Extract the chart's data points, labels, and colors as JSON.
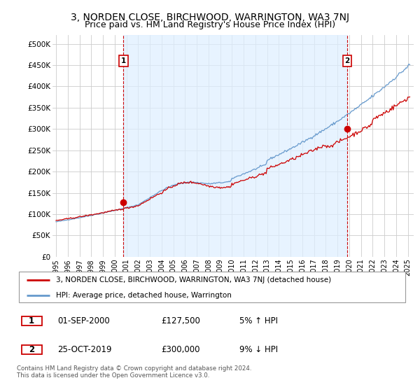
{
  "title": "3, NORDEN CLOSE, BIRCHWOOD, WARRINGTON, WA3 7NJ",
  "subtitle": "Price paid vs. HM Land Registry's House Price Index (HPI)",
  "property_color": "#cc0000",
  "hpi_color": "#6699cc",
  "vline_color": "#cc0000",
  "shade_color": "#ddeeff",
  "grid_color": "#cccccc",
  "bg_color": "#ffffff",
  "sale1_year_float": 2000.75,
  "sale1_value": 127500,
  "sale2_year_float": 2019.83,
  "sale2_value": 300000,
  "ylim": [
    0,
    520000
  ],
  "yticks": [
    0,
    50000,
    100000,
    150000,
    200000,
    250000,
    300000,
    350000,
    400000,
    450000,
    500000
  ],
  "ytick_labels": [
    "£0",
    "£50K",
    "£100K",
    "£150K",
    "£200K",
    "£250K",
    "£300K",
    "£350K",
    "£400K",
    "£450K",
    "£500K"
  ],
  "xlabel_years": [
    "1995",
    "1996",
    "1997",
    "1998",
    "1999",
    "2000",
    "2001",
    "2002",
    "2003",
    "2004",
    "2005",
    "2006",
    "2007",
    "2008",
    "2009",
    "2010",
    "2011",
    "2012",
    "2013",
    "2014",
    "2015",
    "2016",
    "2017",
    "2018",
    "2019",
    "2020",
    "2021",
    "2022",
    "2023",
    "2024",
    "2025"
  ],
  "legend_property": "3, NORDEN CLOSE, BIRCHWOOD, WARRINGTON, WA3 7NJ (detached house)",
  "legend_hpi": "HPI: Average price, detached house, Warrington",
  "table_row1": [
    "1",
    "01-SEP-2000",
    "£127,500",
    "5% ↑ HPI"
  ],
  "table_row2": [
    "2",
    "25-OCT-2019",
    "£300,000",
    "9% ↓ HPI"
  ],
  "footnote": "Contains HM Land Registry data © Crown copyright and database right 2024.\nThis data is licensed under the Open Government Licence v3.0."
}
